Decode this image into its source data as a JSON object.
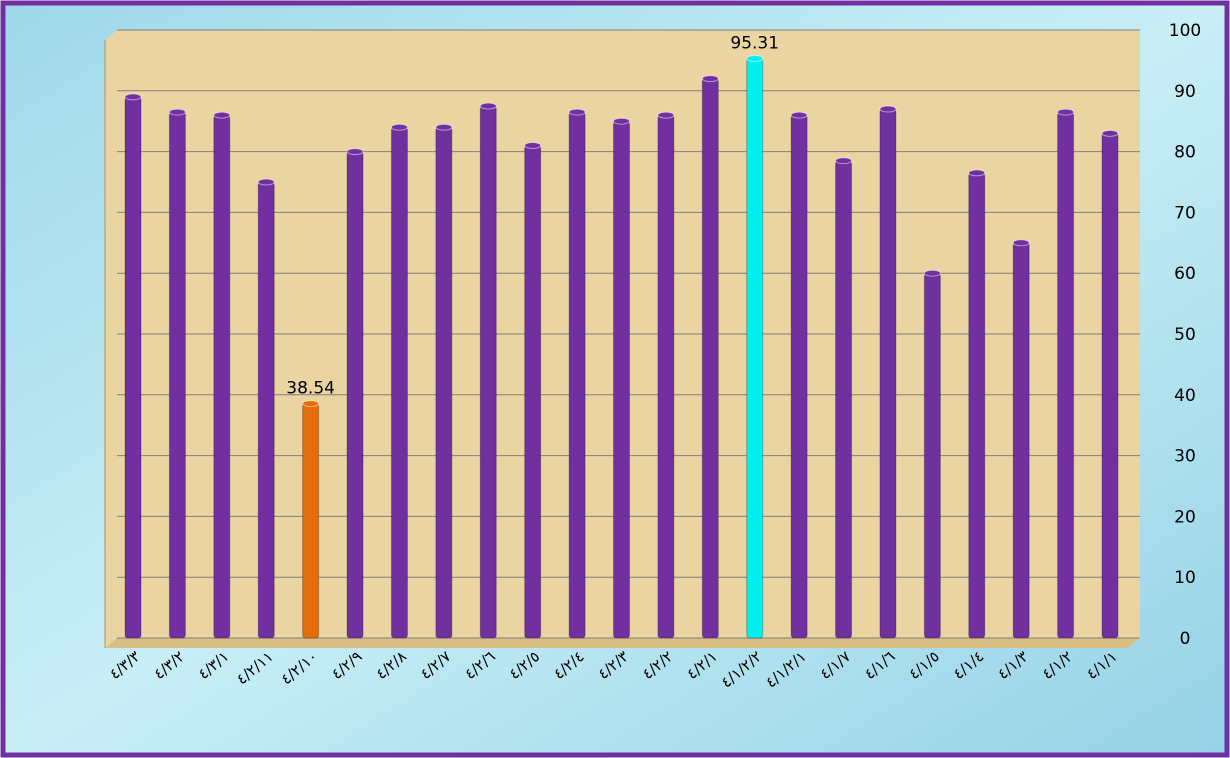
{
  "chart_data": {
    "type": "bar",
    "categories": [
      "٤/٣/٣",
      "٤/٣/٢",
      "٤/٣/١",
      "٤/٢/١١",
      "٤/٢/١٠",
      "٤/٢/٩",
      "٤/٢/٨",
      "٤/٢/٧",
      "٤/٢/٦",
      "٤/٢/٥",
      "٤/٢/٤",
      "٤/٢/٣",
      "٤/٢/٢",
      "٤/٢/١",
      "٤/١/٢/٢",
      "٤/١/٢/١",
      "٤/١/٧",
      "٤/١/٦",
      "٤/١/٥",
      "٤/١/٤",
      "٤/١/٣",
      "٤/١/٢",
      "٤/١/١"
    ],
    "values": [
      89,
      86.5,
      86,
      75,
      38.54,
      80,
      84,
      84,
      87.5,
      81,
      86.5,
      85,
      86,
      92,
      95.31,
      86,
      78.5,
      87,
      60,
      76.5,
      65,
      86.5,
      83
    ],
    "value_labels": [
      null,
      null,
      null,
      null,
      "38.54",
      null,
      null,
      null,
      null,
      null,
      null,
      null,
      null,
      null,
      "95.31",
      null,
      null,
      null,
      null,
      null,
      null,
      null,
      null
    ],
    "colors": [
      "#7030a0",
      "#7030a0",
      "#7030a0",
      "#7030a0",
      "#e46c0a",
      "#7030a0",
      "#7030a0",
      "#7030a0",
      "#7030a0",
      "#7030a0",
      "#7030a0",
      "#7030a0",
      "#7030a0",
      "#7030a0",
      "#00f0f0",
      "#7030a0",
      "#7030a0",
      "#7030a0",
      "#7030a0",
      "#7030a0",
      "#7030a0",
      "#7030a0",
      "#7030a0"
    ],
    "ylim": [
      0,
      100
    ],
    "yticks": [
      0,
      10,
      20,
      30,
      40,
      50,
      60,
      70,
      80,
      90,
      100
    ],
    "grid": true,
    "y_axis_side": "right"
  }
}
